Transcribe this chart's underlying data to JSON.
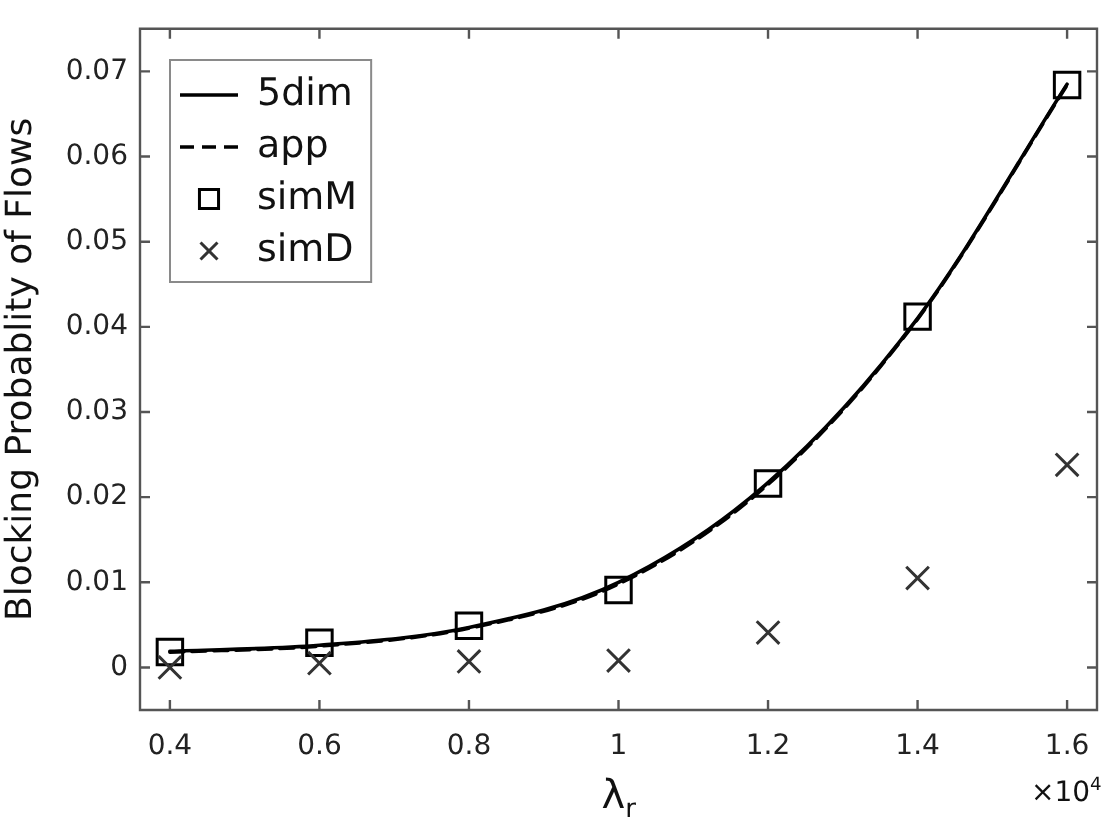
{
  "chart_data": {
    "type": "line",
    "xlabel": "λ$_{r}$",
    "ylabel": "Blocking Probablity of Flows",
    "annotations": [
      "×10$^{4}$"
    ],
    "x": [
      0.4,
      0.6,
      0.8,
      1,
      1.2,
      1.4,
      1.6
    ],
    "series": [
      {
        "name": "5dim",
        "type": "line",
        "color": "#000000",
        "line_style": "solid",
        "marker": "none",
        "values": [
          0.0019,
          0.0026,
          0.0047,
          0.01,
          0.0217,
          0.041,
          0.0685
        ]
      },
      {
        "name": "app",
        "type": "line",
        "color": "#000000",
        "line_style": "dashed",
        "marker": "none",
        "values": [
          0.0018,
          0.0025,
          0.0046,
          0.0098,
          0.0215,
          0.0409,
          0.0684
        ]
      },
      {
        "name": "simM",
        "type": "scatter",
        "color": "#000000",
        "marker": "square",
        "values": [
          0.0018,
          0.0029,
          0.0049,
          0.0091,
          0.0216,
          0.0412,
          0.0684
        ]
      },
      {
        "name": "simD",
        "type": "scatter",
        "color": "#333333",
        "marker": "cross",
        "values": [
          0.0,
          0.0005,
          0.0007,
          0.0008,
          0.0041,
          0.0105,
          0.0238
        ]
      }
    ],
    "xlim": [
      0.36,
      1.64
    ],
    "xticks": [
      0.4,
      0.6,
      0.8,
      1,
      1.2,
      1.4,
      1.6
    ],
    "ylim": [
      -0.005,
      0.075
    ],
    "yticks": [
      0,
      0.01,
      0.02,
      0.03,
      0.04,
      0.05,
      0.06,
      0.07
    ],
    "legend": "top left"
  }
}
